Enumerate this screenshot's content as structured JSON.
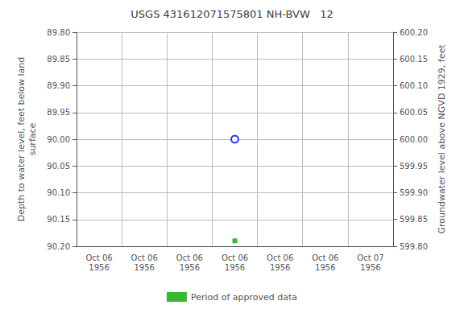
{
  "chart_data": {
    "type": "scatter",
    "title": "USGS 431612071575801 NH-BVW   12",
    "categories": [
      "Oct 06\n1956",
      "Oct 06\n1956",
      "Oct 06\n1956",
      "Oct 06\n1956",
      "Oct 06\n1956",
      "Oct 06\n1956",
      "Oct 07\n1956"
    ],
    "y_label": "Depth to water level, feet below land\nsurface",
    "y2_label": "Groundwater level above NGVD 1929, feet",
    "ylim": [
      90.2,
      89.8
    ],
    "yticks": [
      {
        "value": 89.8,
        "label": "89.80"
      },
      {
        "value": 89.85,
        "label": "89.85"
      },
      {
        "value": 89.9,
        "label": "89.90"
      },
      {
        "value": 89.95,
        "label": "89.95"
      },
      {
        "value": 90.0,
        "label": "90.00"
      },
      {
        "value": 90.05,
        "label": "90.05"
      },
      {
        "value": 90.1,
        "label": "90.10"
      },
      {
        "value": 90.15,
        "label": "90.15"
      },
      {
        "value": 90.2,
        "label": "90.20"
      }
    ],
    "y2lim": [
      599.8,
      600.2
    ],
    "y2ticks": [
      {
        "value": 600.2,
        "label": "600.20"
      },
      {
        "value": 600.15,
        "label": "600.15"
      },
      {
        "value": 600.1,
        "label": "600.10"
      },
      {
        "value": 600.05,
        "label": "600.05"
      },
      {
        "value": 600.0,
        "label": "600.00"
      },
      {
        "value": 599.95,
        "label": "599.95"
      },
      {
        "value": 599.9,
        "label": "599.90"
      },
      {
        "value": 599.85,
        "label": "599.85"
      },
      {
        "value": 599.8,
        "label": "599.80"
      }
    ],
    "series": [
      {
        "color": "blue",
        "marker": "ring",
        "values": [
          null,
          null,
          null,
          90.0,
          null,
          null,
          null
        ]
      },
      {
        "name": "Period of approved data",
        "color": "#00aa00",
        "marker": "square",
        "values": [
          null,
          null,
          null,
          90.19,
          null,
          null,
          null
        ]
      }
    ],
    "grid": true,
    "legend": "bottom"
  }
}
